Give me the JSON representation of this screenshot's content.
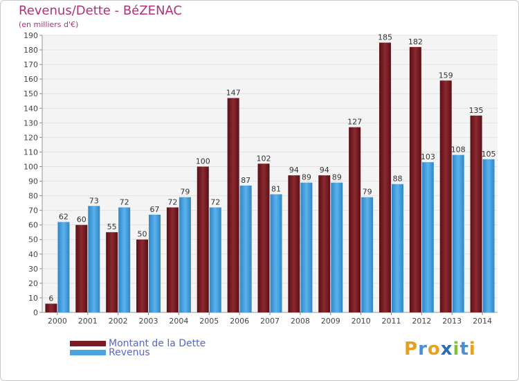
{
  "chart_data": {
    "type": "bar",
    "title": "Revenus/Dette - BéZENAC",
    "subtitle": "(en milliers d'€)",
    "xlabel": "",
    "ylabel": "",
    "ylim": [
      0,
      190
    ],
    "yticks": [
      0,
      10,
      20,
      30,
      40,
      50,
      60,
      70,
      80,
      90,
      100,
      110,
      120,
      130,
      140,
      150,
      160,
      170,
      180,
      190
    ],
    "grid": true,
    "legend_position": "bottom-left",
    "categories": [
      "2000",
      "2001",
      "2002",
      "2003",
      "2004",
      "2005",
      "2006",
      "2007",
      "2008",
      "2009",
      "2010",
      "2011",
      "2012",
      "2013",
      "2014"
    ],
    "series": [
      {
        "name": "Montant de la Dette",
        "color": "#7a1c22",
        "values": [
          6,
          60,
          55,
          50,
          72,
          100,
          147,
          102,
          94,
          94,
          127,
          185,
          182,
          159,
          135
        ]
      },
      {
        "name": "Revenus",
        "color": "#4aa3e0",
        "values": [
          62,
          73,
          72,
          67,
          79,
          72,
          87,
          81,
          89,
          89,
          79,
          88,
          103,
          108,
          105
        ]
      }
    ]
  },
  "legend": {
    "debt_label": "Montant de la Dette",
    "revenue_label": "Revenus"
  },
  "logo": {
    "letters": [
      "P",
      "r",
      "o",
      "x",
      "i",
      "t",
      "i"
    ],
    "colors": [
      "#e6a020",
      "#4a8fd0",
      "#e6a020",
      "#2a6db5",
      "#7fc040",
      "#4a8fd0",
      "#e6a020"
    ]
  }
}
